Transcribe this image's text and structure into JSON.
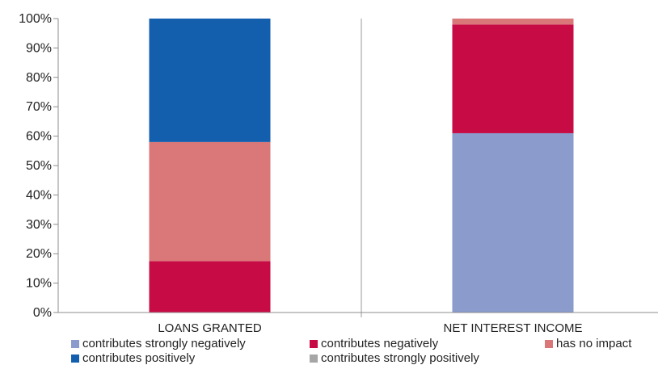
{
  "chart_data": {
    "type": "bar",
    "stacked": true,
    "percent": true,
    "categories": [
      "LOANS GRANTED",
      "NET INTEREST  INCOME"
    ],
    "series": [
      {
        "name": "contributes strongly negatively",
        "color": "#8a9bcc",
        "values": [
          0,
          61
        ]
      },
      {
        "name": "contributes negatively",
        "color": "#c70c45",
        "values": [
          17.5,
          37
        ]
      },
      {
        "name": "has no impact",
        "color": "#da7778",
        "values": [
          40.5,
          2
        ]
      },
      {
        "name": "contributes positively",
        "color": "#135fae",
        "values": [
          42,
          0
        ]
      },
      {
        "name": "contributes strongly positively",
        "color": "#a6a6a6",
        "values": [
          0,
          0
        ]
      }
    ],
    "ylim": [
      0,
      100
    ],
    "yticks": [
      "0%",
      "10%",
      "20%",
      "30%",
      "40%",
      "50%",
      "60%",
      "70%",
      "80%",
      "90%",
      "100%"
    ],
    "grid": "vertical separators",
    "legend": "bottom"
  }
}
